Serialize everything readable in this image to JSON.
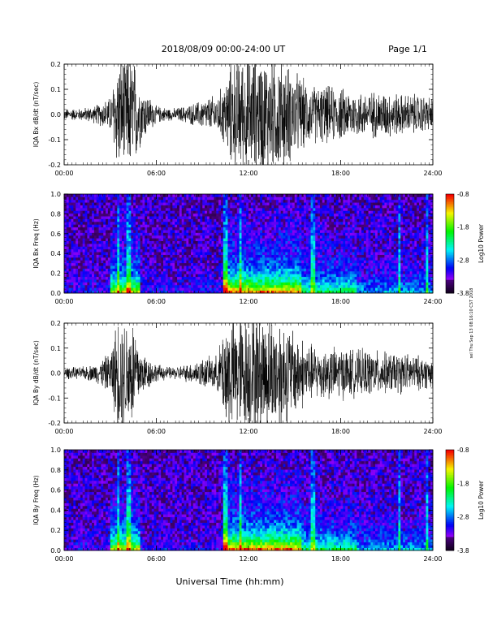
{
  "header": {
    "title": "2018/08/09   00:00-24:00 UT",
    "page": "Page 1/1"
  },
  "footer": {
    "xlabel": "Universal Time (hh:mm)"
  },
  "side_note": "sel Thu Sep 13 08:16:10 CST 2018",
  "colors": {
    "trace": "#000000",
    "background": "#ffffff"
  },
  "chart_data": [
    {
      "type": "line",
      "ylabel": "IQA Bx dB/dt (nT/sec)",
      "ylim": [
        -0.2,
        0.2
      ],
      "y_ticks": [
        "-0.2",
        "-0.1",
        "0.0",
        "0.1",
        "0.2"
      ],
      "xlim": [
        "00:00",
        "24:00"
      ],
      "x_ticks": [
        "00:00",
        "06:00",
        "12:00",
        "18:00",
        "24:00"
      ],
      "series": [
        {
          "x_hours": [
            0,
            1,
            2,
            3,
            3.5,
            4,
            4.5,
            5,
            6,
            7,
            8,
            9,
            10,
            10.5,
            11,
            12,
            13,
            14,
            15,
            16,
            17,
            18,
            19,
            20,
            21,
            22,
            23,
            24
          ],
          "envelope": [
            0.02,
            0.02,
            0.03,
            0.06,
            0.2,
            0.2,
            0.2,
            0.1,
            0.03,
            0.02,
            0.03,
            0.05,
            0.07,
            0.12,
            0.2,
            0.2,
            0.2,
            0.2,
            0.15,
            0.1,
            0.1,
            0.09,
            0.08,
            0.08,
            0.08,
            0.07,
            0.07,
            0.06
          ]
        }
      ]
    },
    {
      "type": "heatmap",
      "ylabel": "IQA Bx Freq (Hz)",
      "ylim": [
        0.0,
        1.0
      ],
      "y_ticks": [
        "0.0",
        "0.2",
        "0.4",
        "0.6",
        "0.8",
        "1.0"
      ],
      "xlim": [
        "00:00",
        "24:00"
      ],
      "x_ticks": [
        "00:00",
        "06:00",
        "12:00",
        "18:00",
        "24:00"
      ],
      "colorbar": {
        "label": "Log10 Power",
        "ticks": [
          "-0.8",
          "-1.8",
          "-2.8",
          "-3.8"
        ],
        "range": [
          -3.8,
          -0.8
        ]
      }
    },
    {
      "type": "line",
      "ylabel": "IQA By dB/dt (nT/sec)",
      "ylim": [
        -0.2,
        0.2
      ],
      "y_ticks": [
        "-0.2",
        "-0.1",
        "0.0",
        "0.1",
        "0.2"
      ],
      "xlim": [
        "00:00",
        "24:00"
      ],
      "x_ticks": [
        "00:00",
        "06:00",
        "12:00",
        "18:00",
        "24:00"
      ],
      "series": [
        {
          "x_hours": [
            0,
            1,
            2,
            3,
            3.5,
            4,
            4.5,
            5,
            6,
            7,
            8,
            9,
            10,
            10.5,
            11,
            12,
            13,
            14,
            15,
            16,
            17,
            18,
            19,
            20,
            21,
            22,
            23,
            24
          ],
          "envelope": [
            0.02,
            0.02,
            0.03,
            0.07,
            0.2,
            0.2,
            0.2,
            0.08,
            0.03,
            0.02,
            0.03,
            0.05,
            0.06,
            0.2,
            0.2,
            0.2,
            0.2,
            0.2,
            0.15,
            0.1,
            0.09,
            0.09,
            0.08,
            0.08,
            0.07,
            0.07,
            0.06,
            0.05
          ]
        }
      ]
    },
    {
      "type": "heatmap",
      "ylabel": "IQA By Freq (Hz)",
      "ylim": [
        0.0,
        1.0
      ],
      "y_ticks": [
        "0.0",
        "0.2",
        "0.4",
        "0.6",
        "0.8",
        "1.0"
      ],
      "xlim": [
        "00:00",
        "24:00"
      ],
      "x_ticks": [
        "00:00",
        "06:00",
        "12:00",
        "18:00",
        "24:00"
      ],
      "colorbar": {
        "label": "Log10 Power",
        "ticks": [
          "-0.8",
          "-1.8",
          "-2.8",
          "-3.8"
        ],
        "range": [
          -3.8,
          -0.8
        ]
      }
    }
  ]
}
